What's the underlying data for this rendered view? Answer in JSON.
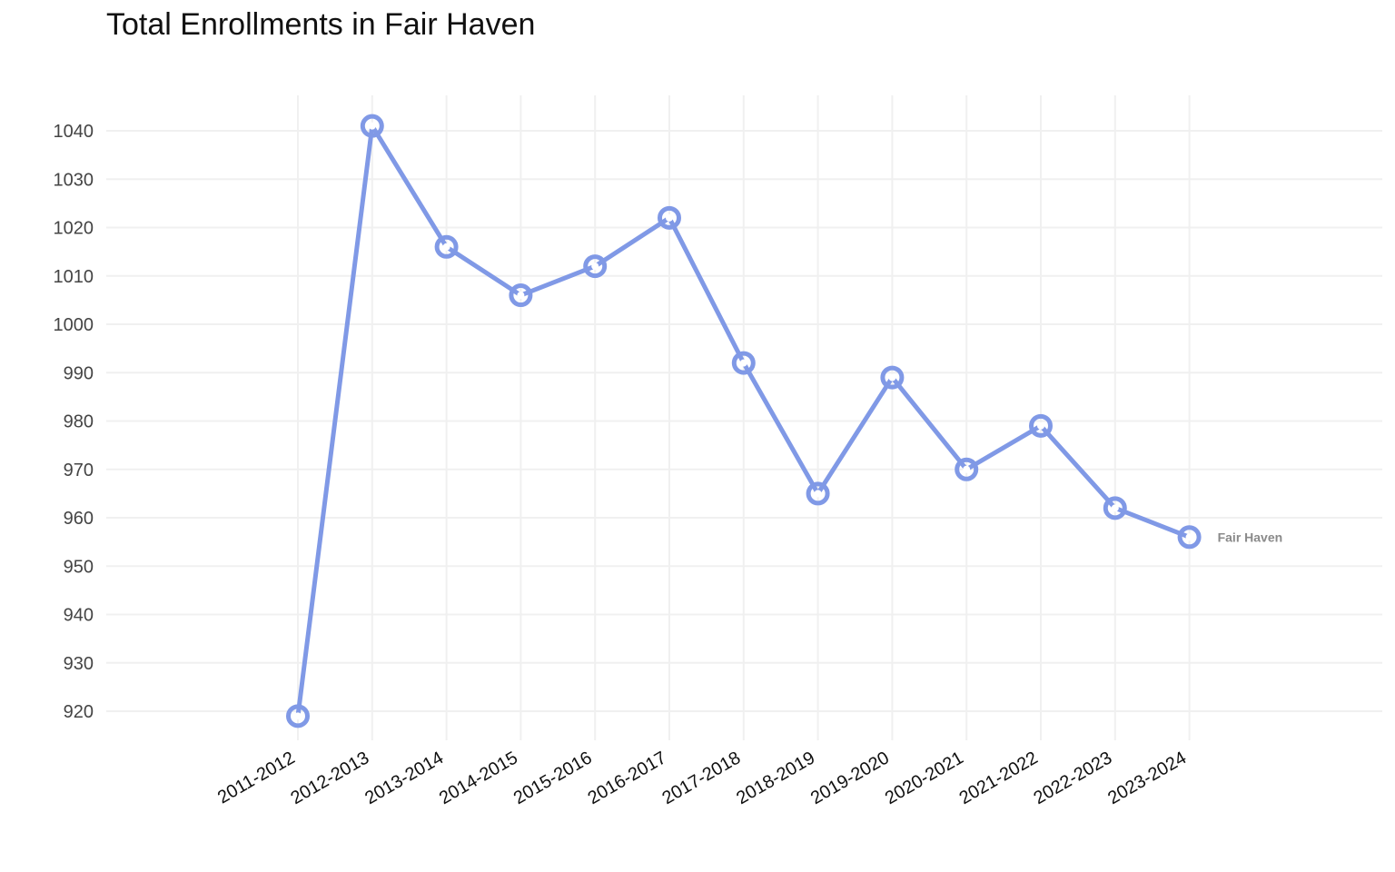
{
  "chart_data": {
    "type": "line",
    "title": "Total Enrollments in Fair Haven",
    "xlabel": "",
    "ylabel": "",
    "categories": [
      "2011-2012",
      "2012-2013",
      "2013-2014",
      "2014-2015",
      "2015-2016",
      "2016-2017",
      "2017-2018",
      "2018-2019",
      "2019-2020",
      "2020-2021",
      "2021-2022",
      "2022-2023",
      "2023-2024"
    ],
    "series": [
      {
        "name": "Fair Haven",
        "values": [
          919,
          1041,
          1016,
          1006,
          1012,
          1022,
          992,
          965,
          989,
          970,
          979,
          962,
          956
        ]
      }
    ],
    "yticks": [
      920,
      930,
      940,
      950,
      960,
      970,
      980,
      990,
      1000,
      1010,
      1020,
      1030,
      1040
    ],
    "ylim": [
      913,
      1047
    ],
    "grid": true,
    "legend": "none",
    "end_label": "Fair Haven",
    "colors": {
      "line": "#8099e6",
      "grid": "#f0f0f0",
      "point_center": "#ffffff"
    }
  }
}
